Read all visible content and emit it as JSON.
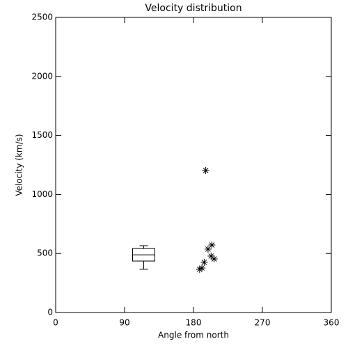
{
  "chart_data": {
    "type": "scatter",
    "title": "Velocity distribution",
    "xlabel": "Angle from north",
    "ylabel": "Velocity (km/s)",
    "xlim": [
      0,
      360
    ],
    "ylim": [
      0,
      2500
    ],
    "xticks": [
      0,
      90,
      180,
      270,
      360
    ],
    "yticks": [
      0,
      500,
      1000,
      1500,
      2000,
      2500
    ],
    "x": [
      196,
      204,
      199,
      203,
      207,
      194,
      191,
      188
    ],
    "values": [
      1203,
      572,
      537,
      478,
      454,
      425,
      377,
      366
    ],
    "color": "#000000",
    "box": {
      "x": 115,
      "whisker_low": 366,
      "q1": 436,
      "median": 489,
      "q3": 542,
      "whisker_high": 566
    }
  }
}
